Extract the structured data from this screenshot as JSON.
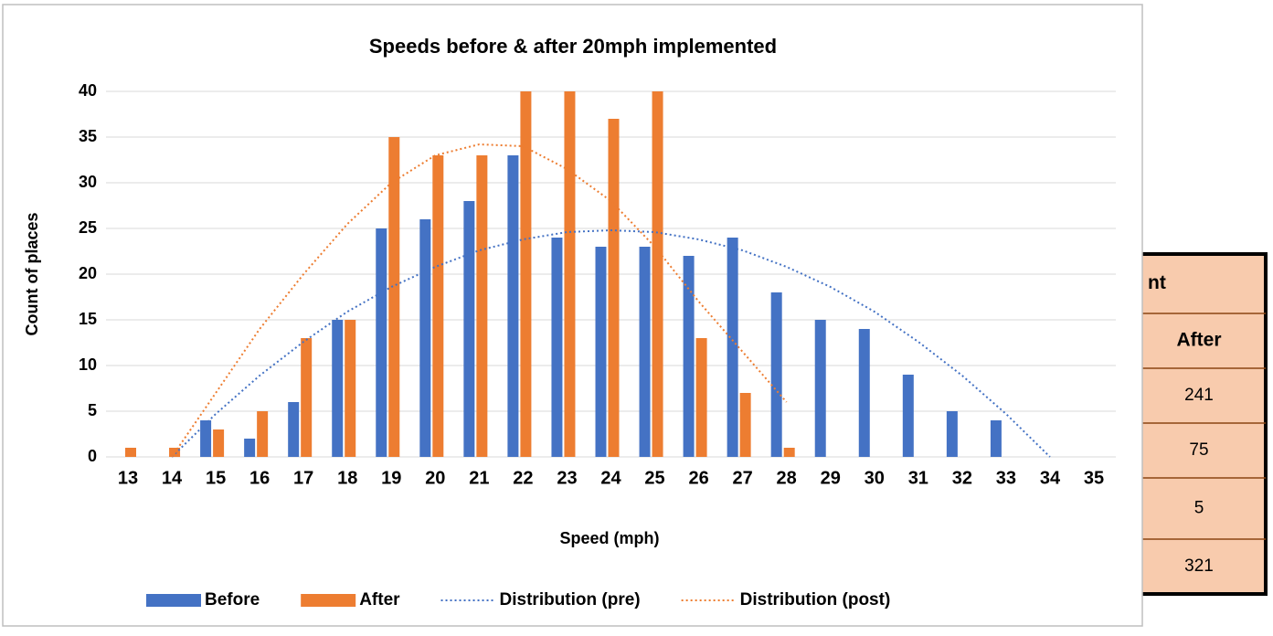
{
  "chart_data": {
    "type": "bar",
    "title": "Speeds before & after 20mph implemented",
    "x_label": "Speed (mph)",
    "y_label": "Count of places",
    "categories": [
      "13",
      "14",
      "15",
      "16",
      "17",
      "18",
      "19",
      "20",
      "21",
      "22",
      "23",
      "24",
      "25",
      "26",
      "27",
      "28",
      "29",
      "30",
      "31",
      "32",
      "33",
      "34",
      "35"
    ],
    "series": [
      {
        "name": "Before",
        "type": "bar",
        "color": "#4472c4",
        "values": [
          null,
          null,
          4,
          2,
          6,
          15,
          25,
          26,
          28,
          33,
          24,
          23,
          23,
          22,
          24,
          18,
          15,
          14,
          9,
          5,
          4,
          null,
          null
        ]
      },
      {
        "name": "After",
        "type": "bar",
        "color": "#ed7d31",
        "values": [
          1,
          1,
          3,
          5,
          13,
          15,
          35,
          33,
          33,
          40,
          40,
          37,
          40,
          13,
          7,
          1,
          null,
          null,
          null,
          null,
          null,
          null,
          null
        ]
      },
      {
        "name": "Distribution (pre)",
        "type": "line",
        "color": "#4472c4",
        "values": [
          null,
          0,
          4.7,
          8.9,
          12.6,
          15.9,
          18.6,
          20.8,
          22.6,
          23.8,
          24.6,
          24.8,
          24.6,
          23.8,
          22.6,
          20.8,
          18.6,
          15.9,
          12.6,
          8.9,
          4.7,
          0,
          null
        ]
      },
      {
        "name": "Distribution (post)",
        "type": "line",
        "color": "#ed7d31",
        "values": [
          null,
          0,
          7,
          14,
          20,
          25.5,
          30,
          33,
          34.2,
          34,
          31.5,
          28,
          23,
          17,
          11.5,
          6,
          null,
          null,
          null,
          null,
          null,
          null,
          null
        ]
      }
    ],
    "ylim": [
      0,
      40
    ],
    "yticks": [
      0,
      5,
      10,
      15,
      20,
      25,
      30,
      35,
      40
    ],
    "grid": true,
    "legend": "bottom"
  },
  "table": {
    "rows": [
      [
        "nt"
      ],
      [
        "After"
      ],
      [
        "241"
      ],
      [
        "75"
      ],
      [
        "5"
      ],
      [
        "321"
      ]
    ]
  }
}
